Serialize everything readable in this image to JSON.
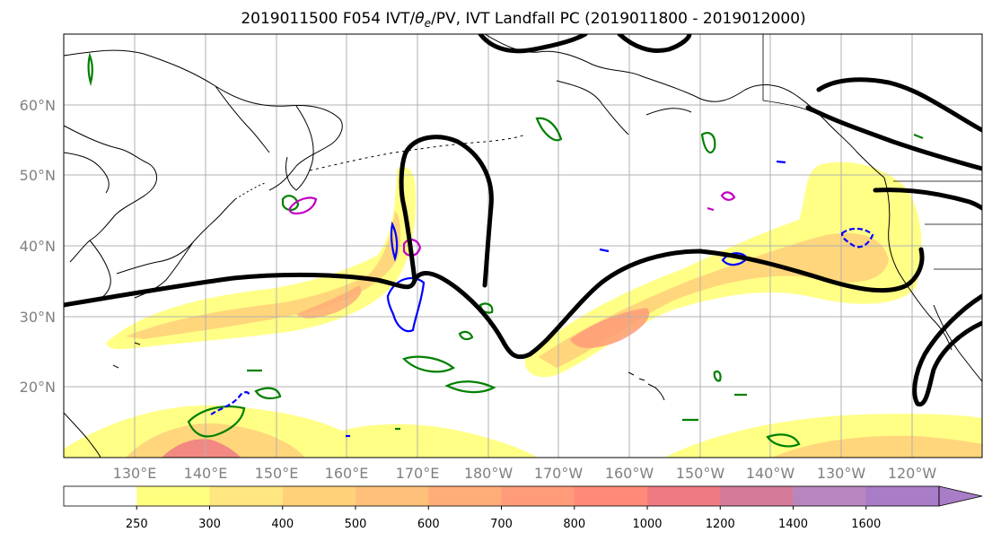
{
  "title_main": "2019011500 F054 IVT/",
  "title_theta": "θ",
  "title_sub": "e",
  "title_rest": "/PV, IVT Landfall PC (2019011800 - 2019012000)",
  "lat_labels": [
    "60°N",
    "50°N",
    "40°N",
    "30°N",
    "20°N"
  ],
  "lon_labels": [
    "130°E",
    "140°E",
    "150°E",
    "160°E",
    "170°E",
    "180°W",
    "170°W",
    "160°W",
    "150°W",
    "140°W",
    "130°W",
    "120°W"
  ],
  "colorbar": {
    "ticks": [
      "250",
      "300",
      "400",
      "500",
      "600",
      "700",
      "800",
      "1000",
      "1200",
      "1400",
      "1600"
    ],
    "colors": [
      "#ffffff",
      "#ffff80",
      "#ffe680",
      "#ffd27a",
      "#ffc07a",
      "#ffad78",
      "#ff9b78",
      "#ff8a78",
      "#f07a84",
      "#d57a98",
      "#b886be",
      "#a87cc6"
    ]
  },
  "map_colors": {
    "ivt_low": "#ffff80",
    "ivt_mid": "#ffd27a",
    "ivt_high": "#ff9b78",
    "ivt_peak": "#f07a84",
    "pv_contour": "#000000",
    "theta_contour": "#008000",
    "blue_contour": "#0000ff",
    "magenta_contour": "#c000c0"
  }
}
